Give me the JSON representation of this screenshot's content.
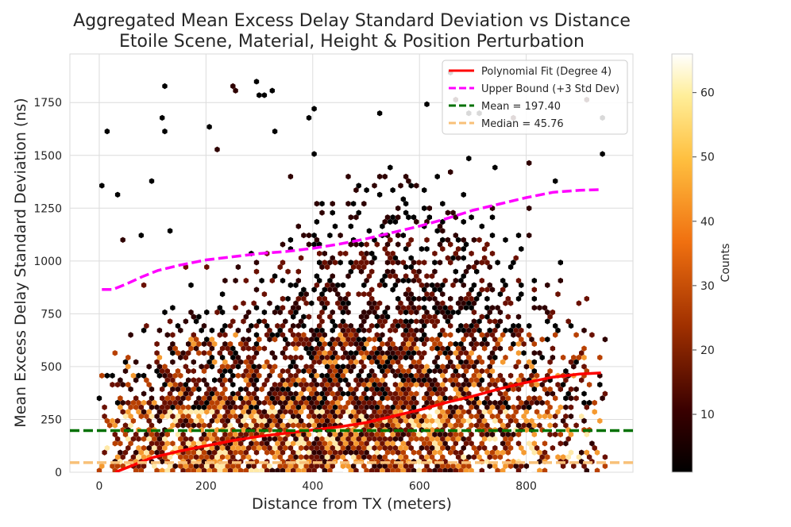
{
  "chart_data": {
    "type": "hexbin",
    "title": "Aggregated Mean Excess Delay Standard Deviation vs Distance",
    "subtitle": "Etoile Scene, Material, Height & Position Perturbation",
    "xlabel": "Distance from TX (meters)",
    "ylabel": "Mean Excess Delay Standard Deviation (ns)",
    "xlim": [
      -55,
      1000
    ],
    "ylim": [
      0,
      1980
    ],
    "x_ticks": [
      0,
      200,
      400,
      600,
      800
    ],
    "y_ticks": [
      0,
      250,
      500,
      750,
      1000,
      1250,
      1500,
      1750
    ],
    "grid": true,
    "legend_position": "upper-right",
    "colors": {
      "poly_fit": "#ff0000",
      "upper_bound": "#ff00ff",
      "mean": "#007000",
      "median": "#f8c078"
    },
    "series": [
      {
        "name": "Polynomial Fit (Degree 4)",
        "style": "solid",
        "x": [
          30,
          60,
          100,
          150,
          200,
          250,
          300,
          350,
          400,
          450,
          500,
          550,
          600,
          650,
          700,
          750,
          800,
          850,
          900,
          940
        ],
        "y": [
          0,
          30,
          70,
          100,
          125,
          150,
          170,
          185,
          200,
          215,
          235,
          265,
          295,
          330,
          360,
          395,
          425,
          450,
          465,
          470
        ]
      },
      {
        "name": "Upper Bound (+3 Std Dev)",
        "style": "dashed",
        "x": [
          5,
          25,
          50,
          80,
          110,
          150,
          200,
          250,
          300,
          350,
          400,
          450,
          500,
          550,
          600,
          650,
          700,
          750,
          800,
          850,
          900,
          940
        ],
        "y": [
          865,
          865,
          890,
          925,
          955,
          980,
          1005,
          1020,
          1035,
          1045,
          1060,
          1080,
          1105,
          1135,
          1165,
          1200,
          1240,
          1270,
          1300,
          1325,
          1335,
          1338
        ]
      },
      {
        "name": "Mean = 197.40",
        "style": "dashed-horizontal",
        "value": 197.4
      },
      {
        "name": "Median = 45.76",
        "style": "dashed-horizontal",
        "value": 45.76
      }
    ],
    "hexbin_note": "Dense hexagonal binning of samples between 0 and 950 m, counts mostly 1-10, highest (up to ~65) near 0-250 ns",
    "colorbar": {
      "label": "Counts",
      "range": [
        1,
        66
      ],
      "ticks": [
        10,
        20,
        30,
        40,
        50,
        60
      ],
      "colormap": "afmhot"
    }
  }
}
